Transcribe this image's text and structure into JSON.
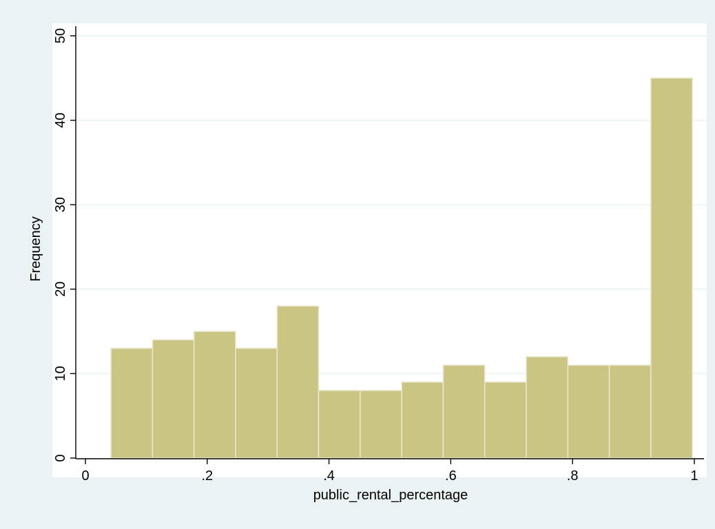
{
  "chart_data": {
    "type": "bar",
    "subtype": "histogram",
    "xlabel": "public_rental_percentage",
    "ylabel": "Frequency",
    "xlim": [
      0,
      1
    ],
    "ylim": [
      0,
      50
    ],
    "xticks": [
      {
        "value": 0,
        "label": "0"
      },
      {
        "value": 0.2,
        "label": ".2"
      },
      {
        "value": 0.4,
        "label": ".4"
      },
      {
        "value": 0.6,
        "label": ".6"
      },
      {
        "value": 0.8,
        "label": ".8"
      },
      {
        "value": 1,
        "label": "1"
      }
    ],
    "yticks": [
      {
        "value": 0,
        "label": "0"
      },
      {
        "value": 10,
        "label": "10"
      },
      {
        "value": 20,
        "label": "20"
      },
      {
        "value": 30,
        "label": "30"
      },
      {
        "value": 40,
        "label": "40"
      },
      {
        "value": 50,
        "label": "50"
      }
    ],
    "bin_start": 0.042,
    "bin_width": 0.0682,
    "values": [
      13,
      14,
      15,
      13,
      18,
      8,
      8,
      9,
      11,
      9,
      12,
      11,
      11,
      45
    ],
    "grid": "horizontal",
    "colors": {
      "bar_fill": "#cbc584",
      "bar_edge": "#e9e7cf",
      "plot_background": "#ffffff",
      "page_background": "#eaf2f3",
      "grid": "#eaf2f3",
      "axis": "#000000"
    }
  }
}
